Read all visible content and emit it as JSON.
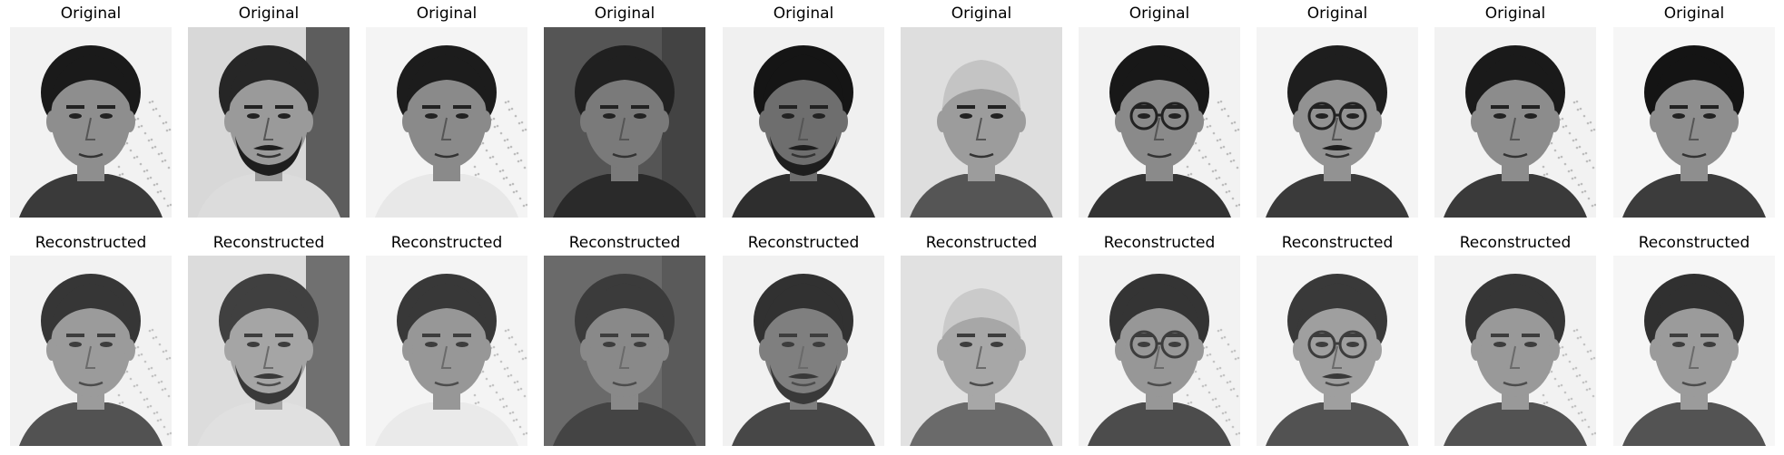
{
  "row_titles": {
    "top": "Original",
    "bottom": "Reconstructed"
  },
  "faces": [
    {
      "id": 1,
      "bg": "#f2f2f2",
      "skin": "#8e8e8e",
      "hair": "#1a1a1a",
      "shirt": "#3a3a3a",
      "glasses": false,
      "beard": false,
      "mustache": false,
      "bald": false,
      "texture": true
    },
    {
      "id": 2,
      "bg": "#d8d8d8",
      "skin": "#9a9a9a",
      "hair": "#262626",
      "shirt": "#dcdcdc",
      "glasses": false,
      "beard": true,
      "mustache": true,
      "bald": false,
      "texture": false,
      "side_shadow": true
    },
    {
      "id": 3,
      "bg": "#f4f4f4",
      "skin": "#8a8a8a",
      "hair": "#1c1c1c",
      "shirt": "#e8e8e8",
      "glasses": false,
      "beard": false,
      "mustache": false,
      "bald": false,
      "texture": true
    },
    {
      "id": 4,
      "bg": "#555555",
      "skin": "#7a7a7a",
      "hair": "#202020",
      "shirt": "#2a2a2a",
      "glasses": false,
      "beard": false,
      "mustache": false,
      "bald": false,
      "texture": false,
      "side_shadow": true
    },
    {
      "id": 5,
      "bg": "#f0f0f0",
      "skin": "#6e6e6e",
      "hair": "#151515",
      "shirt": "#2e2e2e",
      "glasses": false,
      "beard": true,
      "mustache": true,
      "bald": false,
      "texture": false
    },
    {
      "id": 6,
      "bg": "#dedede",
      "skin": "#9c9c9c",
      "hair": "#c4c4c4",
      "shirt": "#555555",
      "glasses": false,
      "beard": false,
      "mustache": false,
      "bald": true,
      "texture": false
    },
    {
      "id": 7,
      "bg": "#f2f2f2",
      "skin": "#8a8a8a",
      "hair": "#181818",
      "shirt": "#333333",
      "glasses": true,
      "beard": false,
      "mustache": false,
      "bald": false,
      "texture": true
    },
    {
      "id": 8,
      "bg": "#f4f4f4",
      "skin": "#929292",
      "hair": "#1e1e1e",
      "shirt": "#3a3a3a",
      "glasses": true,
      "beard": false,
      "mustache": true,
      "bald": false,
      "texture": false
    },
    {
      "id": 9,
      "bg": "#f2f2f2",
      "skin": "#8c8c8c",
      "hair": "#1a1a1a",
      "shirt": "#3a3a3a",
      "glasses": false,
      "beard": false,
      "mustache": false,
      "bald": false,
      "texture": true
    },
    {
      "id": 10,
      "bg": "#f6f6f6",
      "skin": "#8e8e8e",
      "hair": "#141414",
      "shirt": "#3c3c3c",
      "glasses": false,
      "beard": false,
      "mustache": false,
      "bald": false,
      "texture": false
    }
  ]
}
